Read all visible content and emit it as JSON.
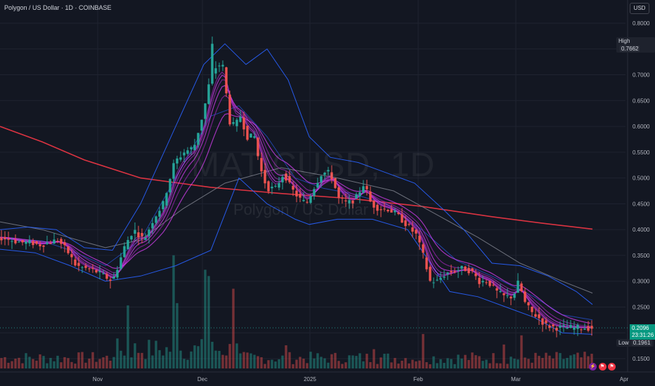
{
  "header": {
    "title": "Polygon / US Dollar · 1D · COINBASE",
    "currency_button": "USD"
  },
  "watermark": {
    "symbol": "MATICUSD, 1D",
    "name": "Polygon / US Dollar"
  },
  "markers": {
    "high_label": "High",
    "high_value": "0.7662",
    "low_label": "Low",
    "low_value": "0.1961",
    "last_price": "0.2096",
    "countdown": "23:31:26"
  },
  "colors": {
    "background": "#131722",
    "up": "#26a69a",
    "down": "#ef5350",
    "ma200": "#f23645",
    "bollinger": "#2962ff",
    "ribbon": "#9c27b0",
    "ma_grey": "#787b86"
  },
  "chart_data": {
    "type": "candlestick",
    "title": "Polygon / US Dollar · 1D · COINBASE",
    "x_ticks": [
      "Nov",
      "Dec",
      "2025",
      "Feb",
      "Mar",
      "Apr"
    ],
    "y_ticks": [
      "0.8000",
      "0.7500",
      "0.7000",
      "0.6500",
      "0.6000",
      "0.5500",
      "0.5000",
      "0.4500",
      "0.4000",
      "0.3500",
      "0.3000",
      "0.2500",
      "0.2000",
      "0.1500"
    ],
    "ylim": [
      0.13,
      0.84
    ],
    "grid": true,
    "price_path": [
      [
        0,
        0.385
      ],
      [
        15,
        0.38
      ],
      [
        30,
        0.375
      ],
      [
        45,
        0.375
      ],
      [
        55,
        0.37
      ],
      [
        70,
        0.375
      ],
      [
        82,
        0.38
      ],
      [
        95,
        0.36
      ],
      [
        108,
        0.33
      ],
      [
        120,
        0.325
      ],
      [
        135,
        0.32
      ],
      [
        148,
        0.31
      ],
      [
        160,
        0.3
      ],
      [
        168,
        0.33
      ],
      [
        178,
        0.37
      ],
      [
        190,
        0.4
      ],
      [
        205,
        0.38
      ],
      [
        218,
        0.42
      ],
      [
        232,
        0.45
      ],
      [
        248,
        0.53
      ],
      [
        262,
        0.55
      ],
      [
        276,
        0.56
      ],
      [
        290,
        0.63
      ],
      [
        300,
        0.7
      ],
      [
        310,
        0.72
      ],
      [
        318,
        0.715
      ],
      [
        326,
        0.61
      ],
      [
        334,
        0.6
      ],
      [
        342,
        0.62
      ],
      [
        352,
        0.58
      ],
      [
        362,
        0.58
      ],
      [
        370,
        0.52
      ],
      [
        380,
        0.48
      ],
      [
        392,
        0.48
      ],
      [
        404,
        0.51
      ],
      [
        414,
        0.48
      ],
      [
        426,
        0.46
      ],
      [
        436,
        0.45
      ],
      [
        446,
        0.48
      ],
      [
        458,
        0.51
      ],
      [
        470,
        0.51
      ],
      [
        482,
        0.46
      ],
      [
        494,
        0.45
      ],
      [
        506,
        0.46
      ],
      [
        518,
        0.49
      ],
      [
        528,
        0.45
      ],
      [
        540,
        0.44
      ],
      [
        552,
        0.44
      ],
      [
        564,
        0.43
      ],
      [
        578,
        0.41
      ],
      [
        592,
        0.39
      ],
      [
        602,
        0.35
      ],
      [
        612,
        0.3
      ],
      [
        622,
        0.3
      ],
      [
        634,
        0.315
      ],
      [
        646,
        0.32
      ],
      [
        658,
        0.325
      ],
      [
        670,
        0.32
      ],
      [
        682,
        0.3
      ],
      [
        694,
        0.3
      ],
      [
        706,
        0.28
      ],
      [
        718,
        0.27
      ],
      [
        730,
        0.27
      ],
      [
        738,
        0.3
      ],
      [
        746,
        0.26
      ],
      [
        756,
        0.24
      ],
      [
        766,
        0.23
      ],
      [
        776,
        0.215
      ],
      [
        790,
        0.21
      ],
      [
        805,
        0.21
      ],
      [
        820,
        0.21
      ],
      [
        840,
        0.2096
      ]
    ],
    "series": [
      {
        "name": "MA 200",
        "color": "#f23645",
        "values": [
          [
            0,
            0.6
          ],
          [
            60,
            0.57
          ],
          [
            120,
            0.535
          ],
          [
            200,
            0.5
          ],
          [
            300,
            0.482
          ],
          [
            400,
            0.47
          ],
          [
            500,
            0.46
          ],
          [
            600,
            0.445
          ],
          [
            700,
            0.425
          ],
          [
            780,
            0.411
          ],
          [
            843,
            0.401
          ]
        ]
      },
      {
        "name": "MA grey",
        "color": "#787b86",
        "values": [
          [
            0,
            0.415
          ],
          [
            60,
            0.4
          ],
          [
            110,
            0.38
          ],
          [
            150,
            0.365
          ],
          [
            200,
            0.38
          ],
          [
            260,
            0.44
          ],
          [
            320,
            0.49
          ],
          [
            400,
            0.52
          ],
          [
            480,
            0.5
          ],
          [
            560,
            0.475
          ],
          [
            620,
            0.43
          ],
          [
            680,
            0.385
          ],
          [
            740,
            0.335
          ],
          [
            800,
            0.3
          ],
          [
            843,
            0.277
          ]
        ]
      },
      {
        "name": "BB upper",
        "color": "#2962ff",
        "values": [
          [
            0,
            0.4
          ],
          [
            40,
            0.405
          ],
          [
            80,
            0.4
          ],
          [
            120,
            0.365
          ],
          [
            160,
            0.36
          ],
          [
            200,
            0.45
          ],
          [
            250,
            0.6
          ],
          [
            290,
            0.72
          ],
          [
            320,
            0.76
          ],
          [
            350,
            0.72
          ],
          [
            380,
            0.75
          ],
          [
            410,
            0.69
          ],
          [
            440,
            0.58
          ],
          [
            470,
            0.54
          ],
          [
            510,
            0.53
          ],
          [
            550,
            0.51
          ],
          [
            590,
            0.49
          ],
          [
            630,
            0.44
          ],
          [
            660,
            0.4
          ],
          [
            700,
            0.335
          ],
          [
            740,
            0.33
          ],
          [
            780,
            0.31
          ],
          [
            820,
            0.28
          ],
          [
            843,
            0.255
          ]
        ]
      },
      {
        "name": "BB basis",
        "color": "#2962ff",
        "values": [
          [
            0,
            0.382
          ],
          [
            60,
            0.378
          ],
          [
            100,
            0.36
          ],
          [
            150,
            0.33
          ],
          [
            200,
            0.38
          ],
          [
            250,
            0.5
          ],
          [
            300,
            0.62
          ],
          [
            340,
            0.64
          ],
          [
            380,
            0.58
          ],
          [
            420,
            0.5
          ],
          [
            460,
            0.48
          ],
          [
            500,
            0.47
          ],
          [
            550,
            0.45
          ],
          [
            600,
            0.4
          ],
          [
            650,
            0.34
          ],
          [
            700,
            0.31
          ],
          [
            760,
            0.27
          ],
          [
            800,
            0.235
          ],
          [
            843,
            0.225
          ]
        ]
      },
      {
        "name": "BB lower",
        "color": "#2962ff",
        "values": [
          [
            0,
            0.362
          ],
          [
            50,
            0.355
          ],
          [
            100,
            0.33
          ],
          [
            150,
            0.3
          ],
          [
            200,
            0.31
          ],
          [
            250,
            0.33
          ],
          [
            300,
            0.36
          ],
          [
            340,
            0.5
          ],
          [
            380,
            0.45
          ],
          [
            420,
            0.42
          ],
          [
            440,
            0.41
          ],
          [
            480,
            0.42
          ],
          [
            530,
            0.42
          ],
          [
            580,
            0.4
          ],
          [
            610,
            0.34
          ],
          [
            640,
            0.28
          ],
          [
            680,
            0.27
          ],
          [
            720,
            0.25
          ],
          [
            760,
            0.23
          ],
          [
            800,
            0.2
          ],
          [
            843,
            0.197
          ]
        ]
      }
    ]
  }
}
